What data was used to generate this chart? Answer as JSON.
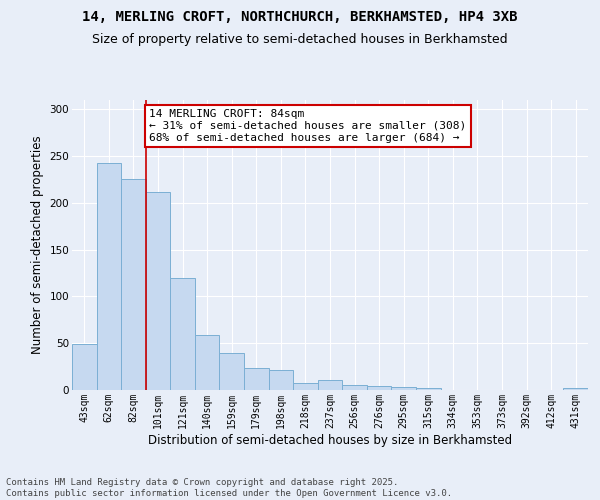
{
  "title_line1": "14, MERLING CROFT, NORTHCHURCH, BERKHAMSTED, HP4 3XB",
  "title_line2": "Size of property relative to semi-detached houses in Berkhamsted",
  "xlabel": "Distribution of semi-detached houses by size in Berkhamsted",
  "ylabel": "Number of semi-detached properties",
  "categories": [
    "43sqm",
    "62sqm",
    "82sqm",
    "101sqm",
    "121sqm",
    "140sqm",
    "159sqm",
    "179sqm",
    "198sqm",
    "218sqm",
    "237sqm",
    "256sqm",
    "276sqm",
    "295sqm",
    "315sqm",
    "334sqm",
    "353sqm",
    "373sqm",
    "392sqm",
    "412sqm",
    "431sqm"
  ],
  "values": [
    49,
    243,
    226,
    212,
    120,
    59,
    40,
    23,
    21,
    8,
    11,
    5,
    4,
    3,
    2,
    0,
    0,
    0,
    0,
    0,
    2
  ],
  "bar_color": "#c6d9f0",
  "bar_edge_color": "#7bafd4",
  "property_label": "14 MERLING CROFT: 84sqm",
  "pct_smaller": 31,
  "pct_larger": 68,
  "count_smaller": 308,
  "count_larger": 684,
  "annotation_box_edge_color": "#cc0000",
  "vline_color": "#cc0000",
  "vline_x_index": 2.5,
  "ylim": [
    0,
    310
  ],
  "yticks": [
    0,
    50,
    100,
    150,
    200,
    250,
    300
  ],
  "bg_color": "#e8eef8",
  "grid_color": "#ffffff",
  "title_fontsize": 10,
  "subtitle_fontsize": 9,
  "axis_label_fontsize": 8.5,
  "tick_fontsize": 7,
  "annotation_fontsize": 8,
  "footer_fontsize": 6.5,
  "footer_line1": "Contains HM Land Registry data © Crown copyright and database right 2025.",
  "footer_line2": "Contains public sector information licensed under the Open Government Licence v3.0."
}
